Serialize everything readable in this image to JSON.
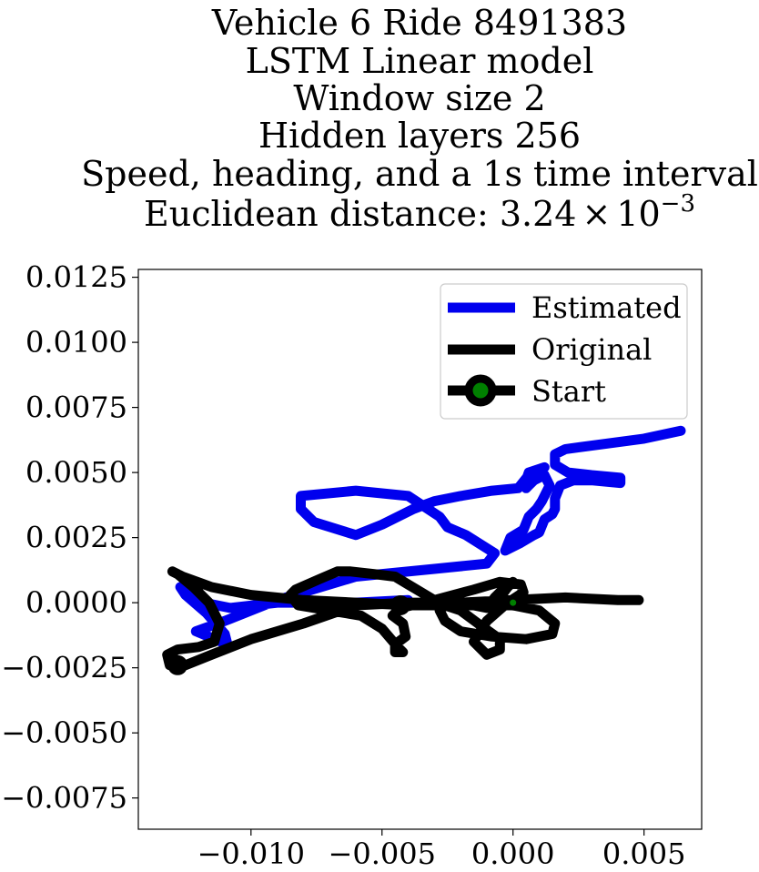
{
  "chart_data": {
    "type": "line",
    "title_lines": [
      "Vehicle 6 Ride 8491383",
      "LSTM Linear model",
      "Window size 2",
      "Hidden layers 256",
      "Speed, heading, and a 1s time interval"
    ],
    "title_metric_label": "Euclidean distance: 3.24",
    "title_metric_times": "×",
    "title_metric_base": "10",
    "title_metric_exponent": "−3",
    "xlabel": "",
    "ylabel": "",
    "xlim": [
      -0.0143,
      0.0072
    ],
    "ylim": [
      -0.0087,
      0.0128
    ],
    "x_ticks": [
      -0.01,
      -0.005,
      0.0,
      0.005
    ],
    "x_tick_labels": [
      "−0.010",
      "−0.005",
      "0.000",
      "0.005"
    ],
    "y_ticks": [
      0.0125,
      0.01,
      0.0075,
      0.005,
      0.0025,
      0.0,
      -0.0025,
      -0.005,
      -0.0075
    ],
    "y_tick_labels": [
      "0.0125",
      "0.0100",
      "0.0075",
      "0.0050",
      "0.0025",
      "0.0000",
      "−0.0025",
      "−0.0050",
      "−0.0075"
    ],
    "grid": false,
    "legend_position": "top-right",
    "series": [
      {
        "name": "Estimated",
        "color": "#0000ee",
        "x": [
          0.0064,
          0.005,
          0.002,
          0.0016,
          0.0016,
          0.0021,
          0.003,
          0.0041,
          0.0041,
          0.003,
          0.0023,
          0.0018,
          0.0016,
          0.0016,
          0.0015,
          0.0012,
          0.001,
          0.0008,
          0.0003,
          -0.0001,
          -0.0003,
          -0.0001,
          0.0004,
          0.0006,
          0.0009,
          0.0011,
          0.0014,
          0.0012,
          0.0008,
          0.0006,
          0.0005,
          0.0005,
          0.0006,
          0.0012,
          0.0006,
          0.0002,
          -0.0008,
          -0.002,
          -0.003,
          -0.0038,
          -0.005,
          -0.006,
          -0.0076,
          -0.0081,
          -0.0081,
          -0.006,
          -0.004,
          -0.0028,
          -0.0025,
          -0.0018,
          -0.0007,
          -0.001,
          -0.003,
          -0.006,
          -0.009,
          -0.011,
          -0.0121,
          -0.0109,
          -0.011,
          -0.0117,
          -0.0125,
          -0.0127,
          -0.0118,
          -0.0108,
          -0.009,
          -0.006,
          -0.004
        ],
        "y": [
          0.0066,
          0.0063,
          0.0059,
          0.0057,
          0.0053,
          0.005,
          0.0049,
          0.0048,
          0.0046,
          0.0047,
          0.0047,
          0.0045,
          0.004,
          0.0036,
          0.0034,
          0.0032,
          0.0027,
          0.0026,
          0.0023,
          0.0021,
          0.002,
          0.0025,
          0.0028,
          0.0033,
          0.0036,
          0.0039,
          0.0045,
          0.0049,
          0.0047,
          0.0045,
          0.0044,
          0.0047,
          0.005,
          0.0052,
          0.0049,
          0.0044,
          0.0043,
          0.0041,
          0.0039,
          0.0036,
          0.003,
          0.0026,
          0.0031,
          0.0036,
          0.0041,
          0.0043,
          0.0041,
          0.0033,
          0.0029,
          0.0026,
          0.0019,
          0.0015,
          0.0013,
          0.001,
          0.0001,
          -0.0007,
          -0.0011,
          -0.0016,
          -0.0012,
          -0.0004,
          0.0003,
          0.0006,
          0.0,
          -0.0002,
          0.0,
          0.0,
          0.0001
        ]
      },
      {
        "name": "Original",
        "color": "#000000",
        "x": [
          0.0048,
          0.004,
          0.002,
          0.0,
          -0.002,
          -0.004,
          -0.006,
          -0.008,
          -0.01,
          -0.0115,
          -0.0125,
          -0.0131,
          -0.0132,
          -0.0128,
          -0.012,
          -0.0114,
          -0.0112,
          -0.0116,
          -0.0122,
          -0.0128,
          -0.013,
          -0.0126,
          -0.0115,
          -0.01,
          -0.008,
          -0.006,
          -0.004,
          -0.002,
          0.0,
          0.001,
          0.0016,
          0.0015,
          0.0005,
          -0.0008,
          -0.002,
          -0.0026,
          -0.0028,
          -0.0026,
          -0.002,
          -0.0012,
          -0.0005,
          -0.0005,
          -0.001,
          -0.0015,
          -0.001,
          -0.0002,
          0.0004,
          0.0003,
          -0.0005,
          -0.0015,
          -0.003,
          -0.0043,
          -0.0046,
          -0.0042,
          -0.0041,
          -0.0045,
          -0.0045,
          -0.0042,
          -0.0044,
          -0.005,
          -0.0058,
          -0.007,
          -0.0082,
          -0.0085,
          -0.0083,
          -0.0074,
          -0.0067,
          -0.0062,
          -0.0053,
          -0.0045,
          -0.004,
          -0.0035,
          -0.003,
          -0.0025,
          -0.0022,
          -0.0018,
          -0.001,
          -0.0005,
          -0.0002,
          0.0,
          -0.0003,
          -0.0007,
          -0.001,
          -0.0015,
          -0.0025,
          -0.004,
          -0.0043
        ],
        "y": [
          0.0001,
          0.0001,
          0.0002,
          0.0001,
          0.0,
          0.0,
          -0.0001,
          -0.0008,
          -0.0014,
          -0.002,
          -0.0024,
          -0.0024,
          -0.002,
          -0.0018,
          -0.0017,
          -0.0015,
          -0.0008,
          0.0,
          0.0006,
          0.0011,
          0.0012,
          0.001,
          0.0006,
          0.0003,
          0.0001,
          0.0,
          -0.0001,
          -0.0001,
          -0.0001,
          -0.0003,
          -0.0008,
          -0.0012,
          -0.0014,
          -0.0013,
          -0.0011,
          -0.0007,
          -0.0003,
          -0.0001,
          -0.0003,
          -0.0009,
          -0.0014,
          -0.0018,
          -0.002,
          -0.0015,
          -0.0007,
          0.0,
          0.0004,
          0.0007,
          0.0008,
          0.0005,
          0.0001,
          -0.0002,
          -0.0005,
          -0.0008,
          -0.0013,
          -0.0016,
          -0.0019,
          -0.0019,
          -0.0017,
          -0.001,
          -0.0005,
          -0.0003,
          -0.0001,
          0.0003,
          0.0005,
          0.0009,
          0.0012,
          0.0012,
          0.0011,
          0.001,
          0.0007,
          0.0004,
          0.0001,
          -0.0001,
          -0.0001,
          -0.0001,
          -0.0001,
          0.0002,
          0.0006,
          0.0008,
          0.0006,
          0.0002,
          -0.0002,
          -0.0001,
          0.0,
          -0.0001,
          -0.0001
        ]
      }
    ],
    "start_marker": {
      "name": "Start",
      "x": 0.0,
      "y": 0.0,
      "fill": "#008000",
      "edge": "#000000"
    }
  }
}
